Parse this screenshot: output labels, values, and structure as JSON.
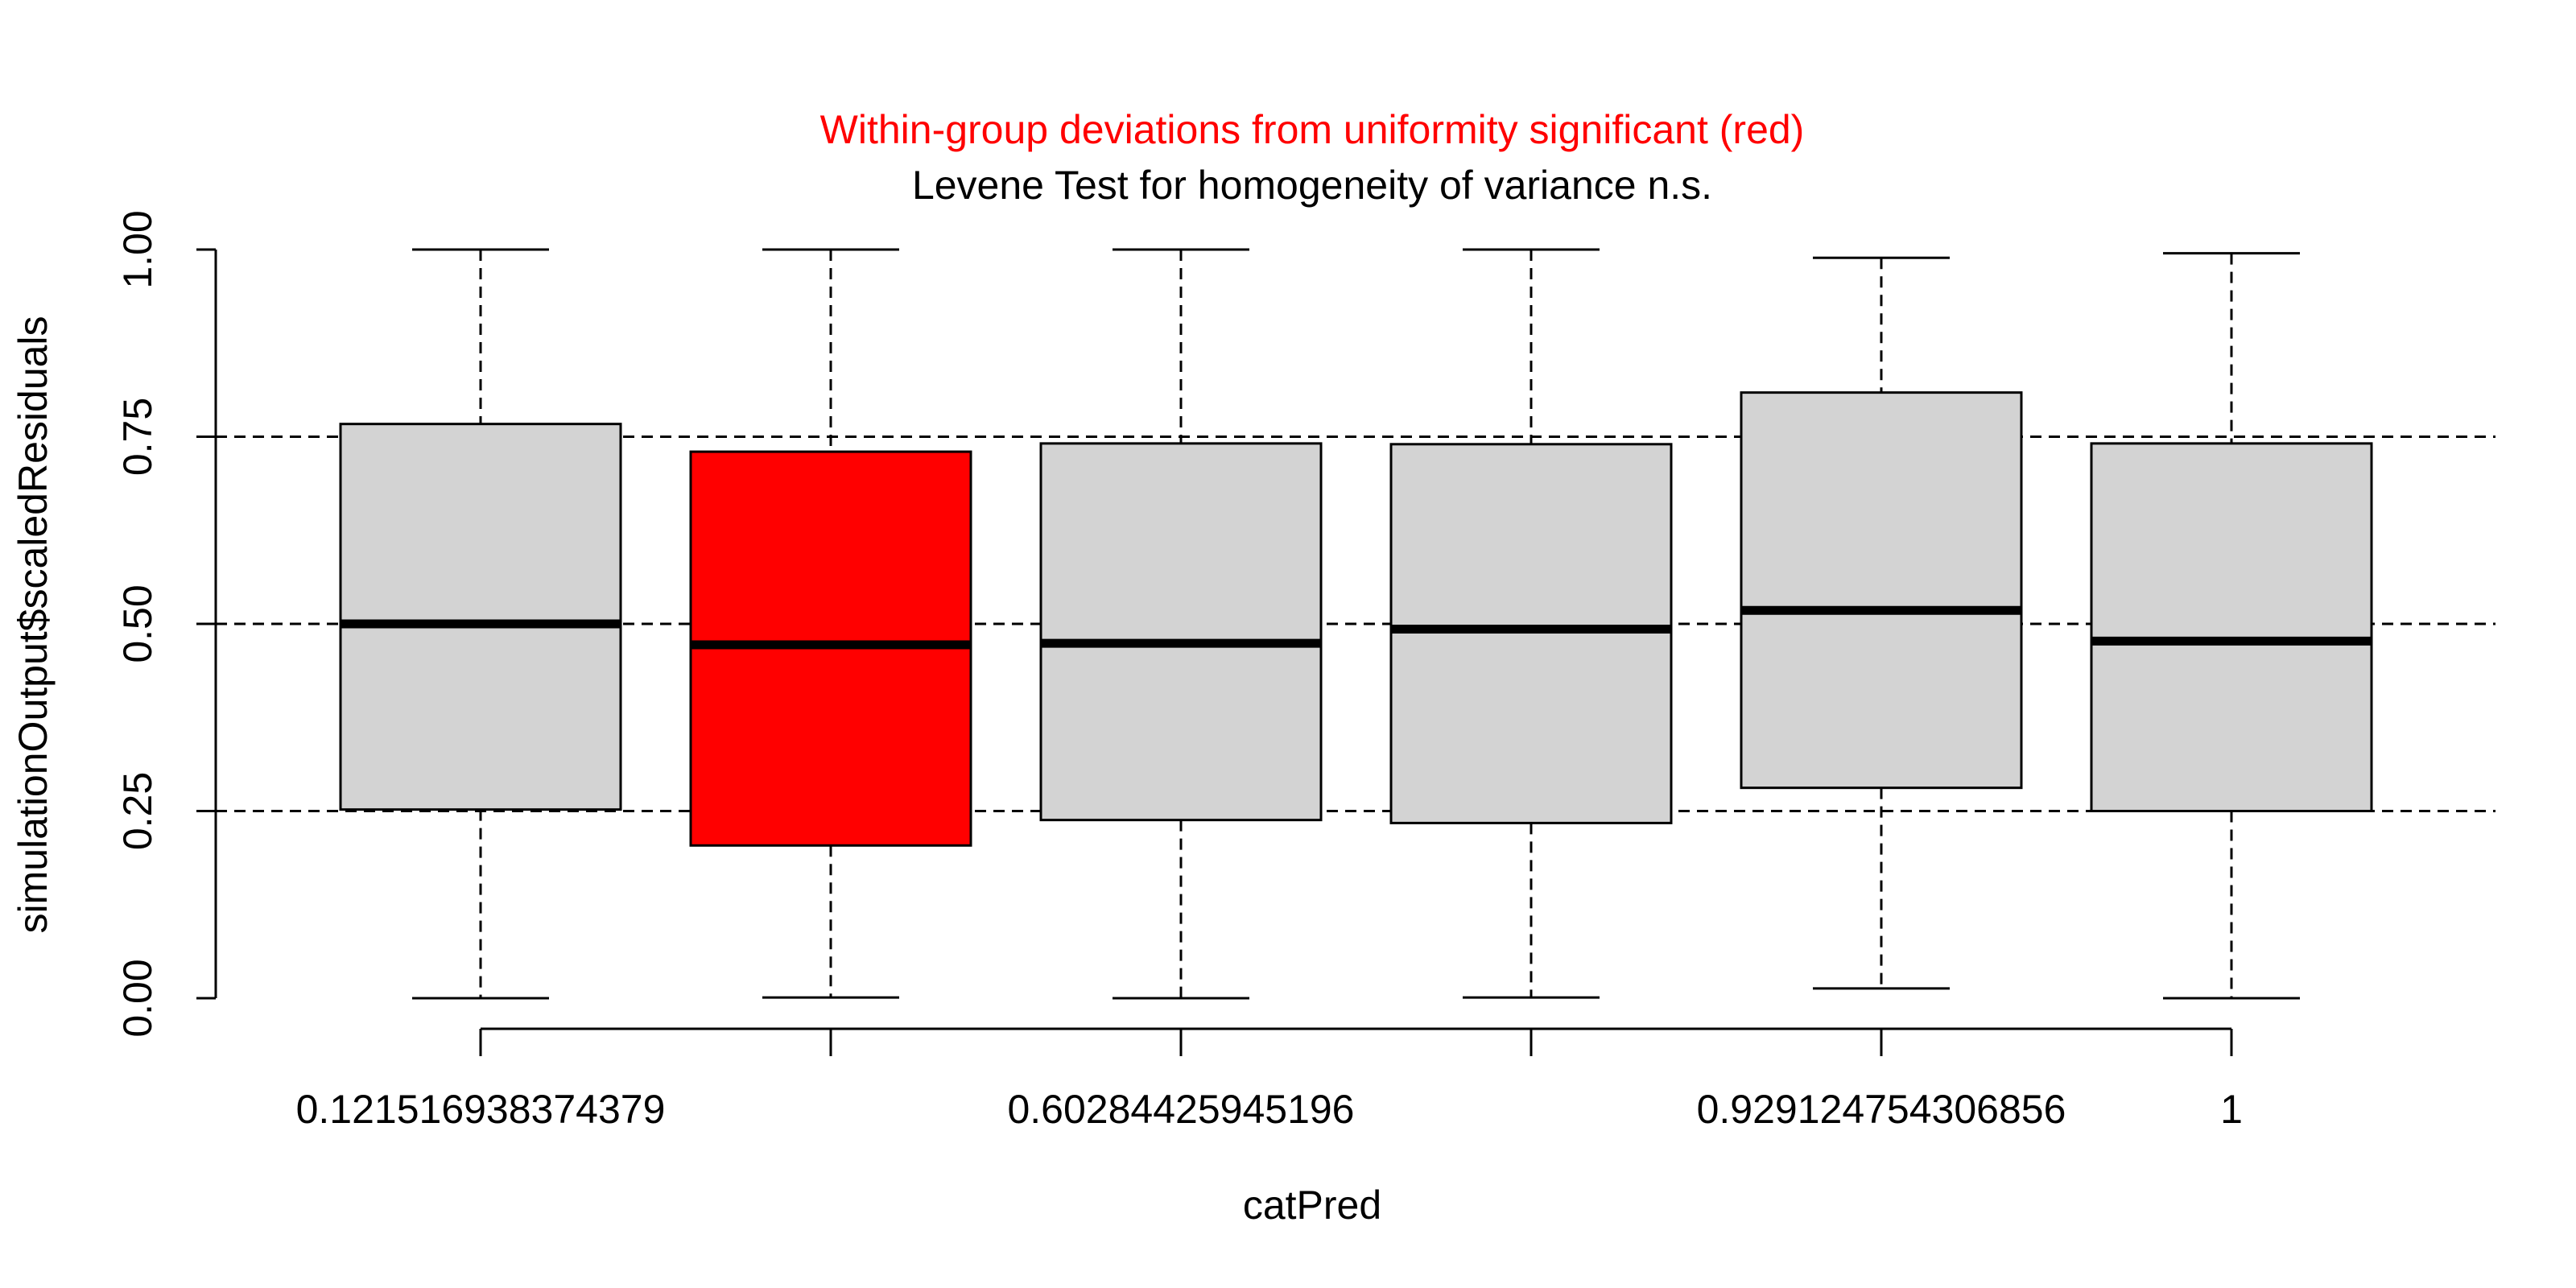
{
  "chart_data": {
    "type": "boxplot",
    "title_line1": "Within-group deviations from uniformity significant (red)",
    "title_line2": "Levene Test for homogeneity of variance n.s.",
    "xlabel": "catPred",
    "ylabel": "simulationOutput$scaledResiduals",
    "ylim": [
      0,
      1
    ],
    "y_ticks": [
      0.0,
      0.25,
      0.5,
      0.75,
      1.0
    ],
    "y_tick_labels": [
      "0.00",
      "0.25",
      "0.50",
      "0.75",
      "1.00"
    ],
    "reference_lines": [
      0.25,
      0.5,
      0.75
    ],
    "x_tick_labels": [
      "0.121516938374379",
      "",
      "0.60284425945196",
      "",
      "0.929124754306856",
      "1"
    ],
    "groups": [
      {
        "min": 0.0,
        "q1": 0.252,
        "median": 0.5,
        "q3": 0.767,
        "max": 1.0,
        "significant": false
      },
      {
        "min": 0.001,
        "q1": 0.204,
        "median": 0.472,
        "q3": 0.73,
        "max": 1.0,
        "significant": true
      },
      {
        "min": 0.0,
        "q1": 0.238,
        "median": 0.474,
        "q3": 0.741,
        "max": 1.0,
        "significant": false
      },
      {
        "min": 0.001,
        "q1": 0.234,
        "median": 0.493,
        "q3": 0.74,
        "max": 1.0,
        "significant": false
      },
      {
        "min": 0.013,
        "q1": 0.281,
        "median": 0.518,
        "q3": 0.809,
        "max": 0.989,
        "significant": false
      },
      {
        "min": 0.0,
        "q1": 0.25,
        "median": 0.477,
        "q3": 0.741,
        "max": 0.995,
        "significant": false
      }
    ],
    "colors": {
      "box_fill": "#d3d3d3",
      "significant_fill": "#ff0000",
      "title_line1": "#ff0000",
      "axis": "#000000"
    }
  }
}
